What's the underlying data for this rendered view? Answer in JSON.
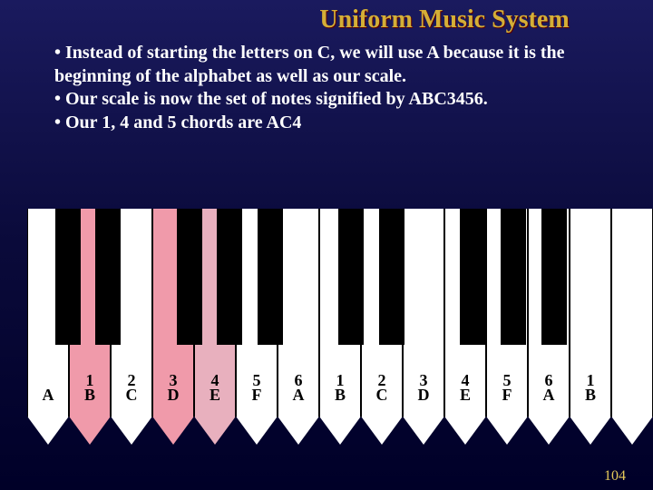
{
  "title": "Uniform Music System",
  "bullets": [
    "• Instead of starting the letters on C, we will use A because it is the beginning of the alphabet as well as our scale.",
    "• Our scale is now the set of notes signified by ABC3456.",
    "• Our 1, 4 and 5 chords are AC4"
  ],
  "pageNumber": "104",
  "piano": {
    "whiteKeyCount": 15,
    "whiteKeyWidth": 44.67,
    "highlightKeys1": [
      1,
      3
    ],
    "highlightKeys2": [
      4
    ],
    "numbers": {
      "1": "1",
      "2": "2",
      "3": "3",
      "4": "4",
      "5": "5",
      "6": "6",
      "7": "1",
      "8": "2",
      "9": "3",
      "10": "4",
      "11": "5",
      "12": "6",
      "13": "1"
    },
    "letters": {
      "0": "A",
      "1": "B",
      "2": "C",
      "3": "D",
      "4": "E",
      "5": "F",
      "6": "A",
      "7": "B",
      "8": "C",
      "9": "D",
      "10": "E",
      "11": "F",
      "12": "A",
      "13": "B"
    },
    "blackKeyPattern": [
      0,
      1,
      3,
      4,
      5
    ],
    "whiteKeysPerOctave": 7,
    "blackKeyWidth": 28
  },
  "colors": {
    "title": "#d4af37",
    "text": "#ffffff",
    "highlight1": "#f09aaa",
    "highlight2": "#e8b0be",
    "pageNum": "#e6c95a"
  }
}
